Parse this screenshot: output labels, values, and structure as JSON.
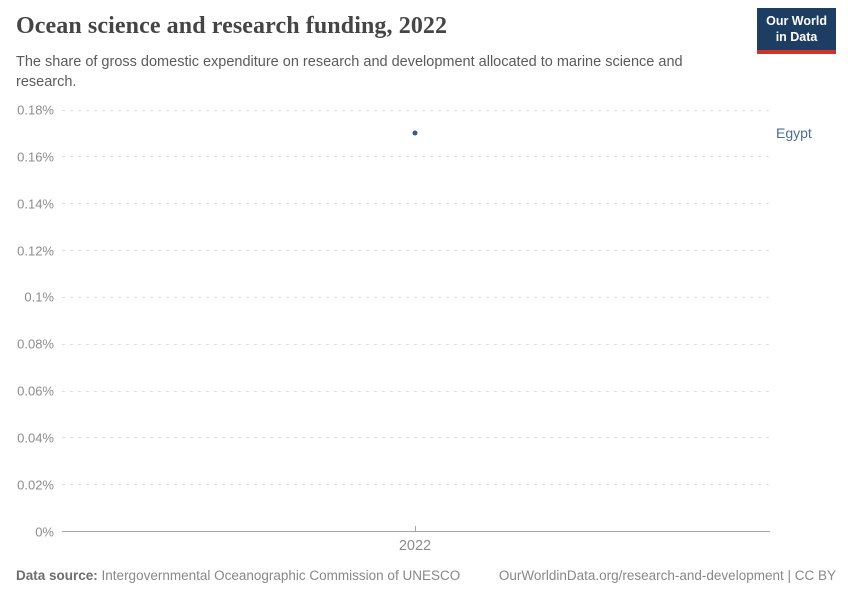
{
  "header": {
    "title": "Ocean science and research funding, 2022",
    "subtitle": "The share of gross domestic expenditure on research and development allocated to marine science and research.",
    "logo": {
      "line1": "Our World",
      "line2": "in Data"
    }
  },
  "chart_data": {
    "type": "scatter",
    "title": "Ocean science and research funding, 2022",
    "x": [
      2022
    ],
    "x_tick_labels": [
      "2022"
    ],
    "series": [
      {
        "name": "Egypt",
        "values": [
          0.17
        ],
        "color": "#4c6a9c",
        "point_color": "#3a5a8c"
      }
    ],
    "unit": "%",
    "ylim": [
      0,
      0.18
    ],
    "y_ticks": [
      0,
      0.02,
      0.04,
      0.06,
      0.08,
      0.1,
      0.12,
      0.14,
      0.16,
      0.18
    ],
    "y_tick_labels": [
      "0%",
      "0.02%",
      "0.04%",
      "0.06%",
      "0.08%",
      "0.1%",
      "0.12%",
      "0.14%",
      "0.16%",
      "0.18%"
    ],
    "grid": "horizontal-dashed",
    "legend": "entity-label-right",
    "xlabel": "",
    "ylabel": ""
  },
  "footer": {
    "source_label": "Data source:",
    "source_text": "Intergovernmental Oceanographic Commission of UNESCO",
    "link_text": "OurWorldinData.org/research-and-development | CC BY"
  },
  "colors": {
    "logo_bg": "#1d3d63",
    "logo_red": "#d0332a",
    "grid": "#dedede",
    "axis": "#a5a5a5",
    "tick_text": "#8c8c8c"
  }
}
